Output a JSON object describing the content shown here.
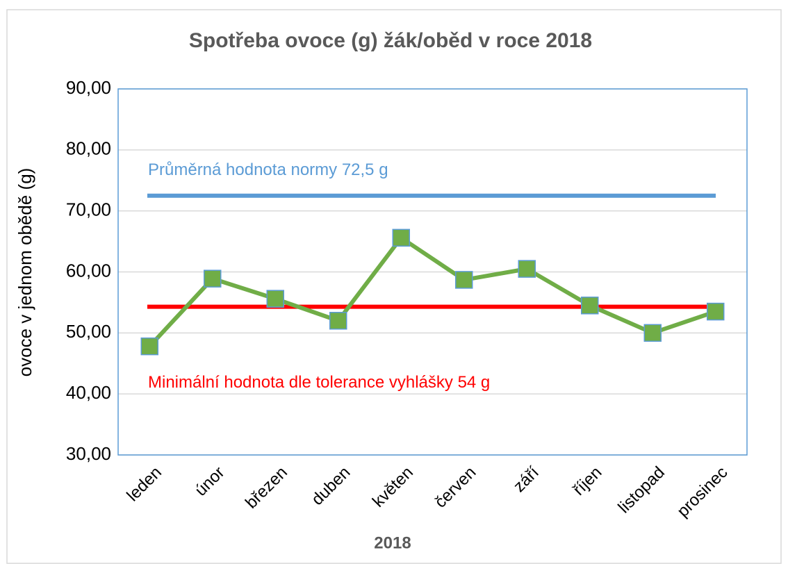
{
  "chart_data": {
    "type": "line",
    "title": "Spotřeba ovoce (g) žák/oběd v roce 2018",
    "xlabel": "2018",
    "ylabel": "ovoce v jednom obědě (g)",
    "categories": [
      "leden",
      "únor",
      "březen",
      "duben",
      "květen",
      "červen",
      "září",
      "říjen",
      "listopad",
      "prosinec"
    ],
    "series": [
      {
        "color": "#70ad47",
        "marker_edge": "#5b9bd5",
        "values": [
          47.8,
          58.9,
          55.6,
          52.0,
          65.6,
          58.7,
          60.5,
          54.5,
          50.0,
          53.5
        ]
      }
    ],
    "reference_lines": [
      {
        "label": "Průměrná hodnota normy 72,5 g",
        "value": 72.5,
        "color": "#5b9bd5"
      },
      {
        "label": "Minimální hodnota dle tolerance vyhlášky 54 g",
        "value": 54.3,
        "color": "#ff0000"
      }
    ],
    "ylim": [
      30,
      90
    ],
    "yticks": [
      {
        "value": 30,
        "label": "30,00"
      },
      {
        "value": 40,
        "label": "40,00"
      },
      {
        "value": 50,
        "label": "50,00"
      },
      {
        "value": 60,
        "label": "60,00"
      },
      {
        "value": 70,
        "label": "70,00"
      },
      {
        "value": 80,
        "label": "80,00"
      },
      {
        "value": 90,
        "label": "90,00"
      }
    ],
    "grid": true
  }
}
